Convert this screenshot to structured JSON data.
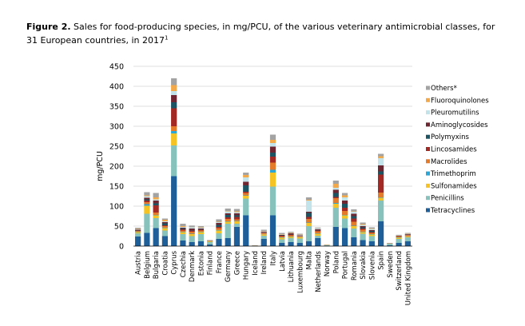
{
  "caption": {
    "figure_label": "Figure 2.",
    "text": " Sales for food-producing species, in mg/PCU, of the various veterinary antimicrobial classes, for 31 European countries, in 2017",
    "footnote_mark": "1"
  },
  "chart_data": {
    "type": "bar",
    "stacked": true,
    "ylabel": "mg/PCU",
    "xlabel": "",
    "ylim": [
      0,
      450
    ],
    "yticks": [
      0,
      50,
      100,
      150,
      200,
      250,
      300,
      350,
      400,
      450
    ],
    "grid": true,
    "legend_position": "right",
    "categories": [
      "Austria",
      "Belgium",
      "Bulgaria",
      "Croatia",
      "Cyprus",
      "Czechia",
      "Denmark",
      "Estonia",
      "Finland",
      "France",
      "Germany",
      "Greece",
      "Hungary",
      "Iceland",
      "Ireland",
      "Italy",
      "Latvia",
      "Lithuania",
      "Luxembourg",
      "Malta",
      "Netherlands",
      "Norway",
      "Poland",
      "Portugal",
      "Romania",
      "Slovakia",
      "Slovenia",
      "Spain",
      "Sweden",
      "Switzerland",
      "United Kingdom"
    ],
    "series": [
      {
        "name": "Tetracyclines",
        "color": "#1f5f99",
        "values": [
          24,
          33,
          45,
          25,
          175,
          14,
          10,
          12,
          4,
          18,
          20,
          48,
          77,
          0.5,
          18,
          77,
          8,
          10,
          8,
          12,
          20,
          1,
          48,
          45,
          22,
          15,
          12,
          62,
          2,
          8,
          12
        ]
      },
      {
        "name": "Penicillins",
        "color": "#88c2bd",
        "values": [
          8,
          48,
          25,
          14,
          77,
          16,
          15,
          18,
          6,
          14,
          36,
          8,
          42,
          1,
          8,
          72,
          9,
          10,
          11,
          38,
          6,
          2,
          48,
          24,
          22,
          16,
          13,
          52,
          4,
          10,
          10
        ]
      },
      {
        "name": "Sulfonamides",
        "color": "#f6c325",
        "values": [
          3,
          20,
          7,
          6,
          30,
          5,
          5,
          5,
          2,
          7,
          5,
          6,
          7,
          0.1,
          3,
          35,
          4,
          3,
          3,
          8,
          5,
          0.1,
          10,
          8,
          6,
          4,
          4,
          7,
          0.5,
          3,
          2
        ]
      },
      {
        "name": "Trimethoprim",
        "color": "#2ba6d6",
        "values": [
          1,
          4,
          1,
          1,
          6,
          1,
          1,
          1,
          0.3,
          1,
          1,
          1,
          1,
          0,
          0.5,
          7,
          1,
          1,
          0.5,
          1,
          1,
          0,
          2,
          1,
          1,
          1,
          1,
          1,
          0.1,
          1,
          0.5
        ]
      },
      {
        "name": "Macrolides",
        "color": "#e37b2a",
        "values": [
          2,
          5,
          6,
          4,
          12,
          3,
          5,
          3,
          1,
          5,
          6,
          4,
          6,
          0.1,
          3,
          18,
          2,
          3,
          2,
          9,
          5,
          0.1,
          12,
          10,
          10,
          5,
          3,
          12,
          0.3,
          2,
          3
        ]
      },
      {
        "name": "Lincosamides",
        "color": "#a32a24",
        "values": [
          1,
          4,
          18,
          2,
          45,
          3,
          3,
          2,
          0.3,
          3,
          4,
          6,
          3,
          0,
          1,
          15,
          2,
          2,
          1,
          5,
          2,
          0,
          3,
          8,
          8,
          3,
          2,
          45,
          0.1,
          1,
          1
        ]
      },
      {
        "name": "Polymyxins",
        "color": "#1d5464",
        "values": [
          1,
          3,
          5,
          5,
          15,
          2,
          1,
          1,
          0.1,
          5,
          6,
          4,
          16,
          0,
          1,
          10,
          1,
          1,
          1,
          10,
          1,
          0,
          10,
          10,
          6,
          3,
          3,
          8,
          0,
          0.2,
          0.5
        ]
      },
      {
        "name": "Aminoglycosides",
        "color": "#6e2730",
        "values": [
          1,
          4,
          7,
          3,
          18,
          2,
          4,
          2,
          0.3,
          5,
          4,
          5,
          9,
          0,
          2,
          15,
          1,
          2,
          1,
          3,
          2,
          0,
          8,
          8,
          6,
          3,
          2,
          15,
          0.1,
          1,
          1
        ]
      },
      {
        "name": "Pleuromutilins",
        "color": "#c2e3ea",
        "values": [
          1,
          4,
          3,
          2,
          10,
          2,
          3,
          2,
          0.2,
          2,
          5,
          3,
          11,
          0,
          1,
          9,
          1,
          1,
          1,
          28,
          2,
          0,
          5,
          8,
          5,
          3,
          3,
          18,
          0.1,
          1,
          0.5
        ]
      },
      {
        "name": "Fluoroquinolones",
        "color": "#f3a94a",
        "values": [
          1,
          2,
          5,
          4,
          15,
          2,
          0.5,
          1,
          0.1,
          1,
          1,
          2,
          6,
          0,
          0.5,
          8,
          1,
          1,
          0.5,
          2,
          0.5,
          0,
          10,
          5,
          1,
          2,
          1,
          5,
          0.1,
          0.2,
          0.5
        ]
      },
      {
        "name": "Others*",
        "color": "#a3a3a3",
        "values": [
          3,
          8,
          11,
          3,
          17,
          6,
          4,
          3,
          1,
          6,
          6,
          6,
          6,
          0.1,
          3,
          13,
          3,
          2,
          2,
          6,
          2,
          0.2,
          8,
          6,
          5,
          4,
          3,
          6,
          0.3,
          1,
          2
        ]
      }
    ]
  }
}
